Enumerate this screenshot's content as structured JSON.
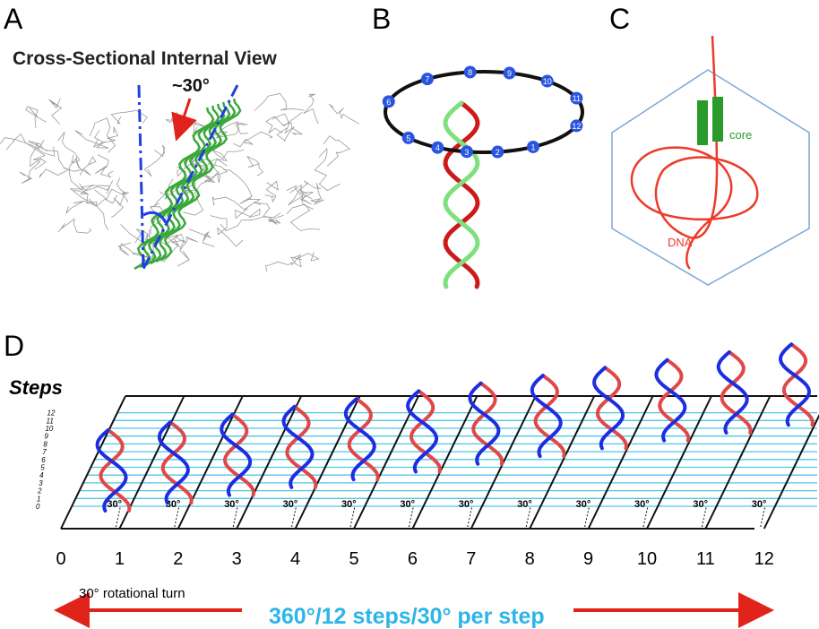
{
  "panels": {
    "A": {
      "label": "A",
      "title": "Cross-Sectional Internal View",
      "angle": "~30°"
    },
    "B": {
      "label": "B",
      "positions": [
        "1",
        "2",
        "3",
        "4",
        "5",
        "6",
        "7",
        "8",
        "9",
        "10",
        "11",
        "12"
      ]
    },
    "C": {
      "label": "C",
      "core": "core",
      "dna": "DNA"
    },
    "D": {
      "label": "D",
      "axis_title": "Steps",
      "levels": [
        "0",
        "1",
        "2",
        "3",
        "4",
        "5",
        "6",
        "7",
        "8",
        "9",
        "10",
        "11",
        "12"
      ],
      "steps": [
        "0",
        "1",
        "2",
        "3",
        "4",
        "5",
        "6",
        "7",
        "8",
        "9",
        "10",
        "11",
        "12"
      ],
      "angle_labels": [
        "30°",
        "30°",
        "30°",
        "30°",
        "30°",
        "30°",
        "30°",
        "30°",
        "30°",
        "30°",
        "30°",
        "30°"
      ],
      "arrow_text": "30° rotational turn",
      "caption": "360°/12 steps/30° per step"
    }
  }
}
